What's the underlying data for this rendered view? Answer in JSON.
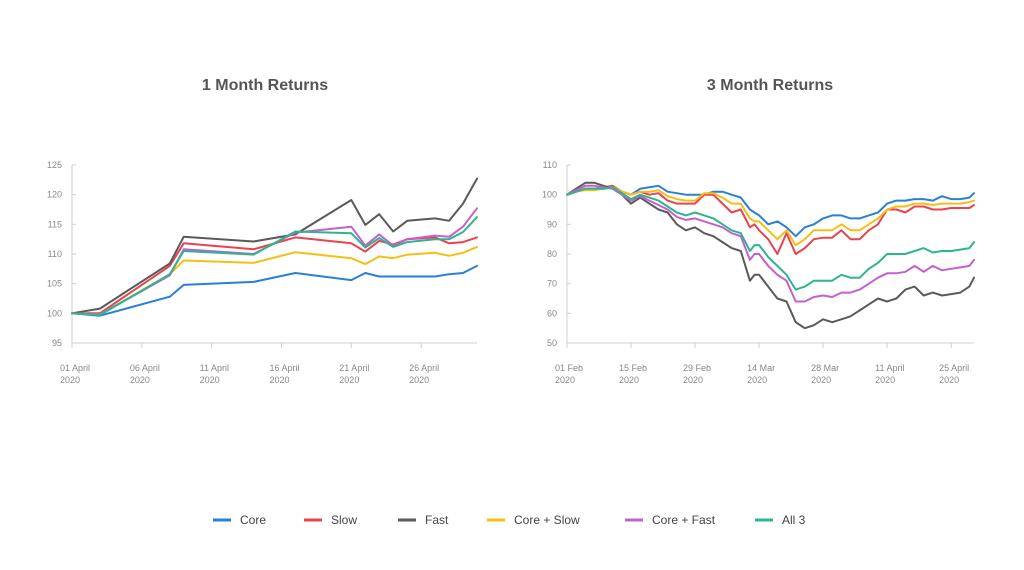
{
  "chart_data": [
    {
      "type": "line",
      "title": "1 Month Returns",
      "ylim": [
        95,
        125
      ],
      "yticks": [
        "95",
        "100",
        "105",
        "110",
        "115",
        "120",
        "125"
      ],
      "x_min": 1,
      "x_max": 30,
      "xticks": [
        {
          "x": 1,
          "lines": [
            "01 April",
            "2020"
          ]
        },
        {
          "x": 6,
          "lines": [
            "06 April",
            "2020"
          ]
        },
        {
          "x": 11,
          "lines": [
            "11 April",
            "2020"
          ]
        },
        {
          "x": 16,
          "lines": [
            "16 April",
            "2020"
          ]
        },
        {
          "x": 21,
          "lines": [
            "21 April",
            "2020"
          ]
        },
        {
          "x": 26,
          "lines": [
            "26 April",
            "2020"
          ]
        }
      ],
      "x": [
        1,
        3,
        8,
        9,
        14,
        17,
        21,
        22,
        23,
        24,
        25,
        27,
        28,
        29,
        30
      ],
      "series": [
        {
          "name": "Core",
          "color": "#2a7fd6",
          "values": [
            100,
            99.6,
            102.8,
            104.8,
            105.3,
            106.8,
            105.6,
            106.8,
            106.2,
            106.2,
            106.2,
            106.2,
            106.6,
            106.8,
            108
          ]
        },
        {
          "name": "Slow",
          "color": "#e8434f",
          "values": [
            100,
            100,
            108,
            111.8,
            110.8,
            112.8,
            111.8,
            110.4,
            112.2,
            111.6,
            112.5,
            112.8,
            111.8,
            112,
            112.8
          ]
        },
        {
          "name": "Fast",
          "color": "#5a5a5a",
          "values": [
            100,
            100.8,
            108.4,
            112.9,
            112.1,
            113.3,
            119.1,
            114.9,
            116.7,
            113.8,
            115.6,
            116,
            115.6,
            118.5,
            122.7
          ]
        },
        {
          "name": "Core + Slow",
          "color": "#f5bf14",
          "values": [
            100,
            99.8,
            106.6,
            108.9,
            108.5,
            110.3,
            109.3,
            108.3,
            109.6,
            109.3,
            109.9,
            110.2,
            109.7,
            110.2,
            111.2
          ]
        },
        {
          "name": "Core + Fast",
          "color": "#c65fce",
          "values": [
            100,
            99.8,
            106.4,
            110.8,
            110,
            113.6,
            114.6,
            111.4,
            113.3,
            111.4,
            112.5,
            113.1,
            112.9,
            114.6,
            117.7
          ]
        },
        {
          "name": "All 3",
          "color": "#2db590",
          "values": [
            100,
            99.7,
            106.6,
            110.5,
            109.9,
            113.8,
            113.5,
            111.1,
            112.7,
            111.2,
            112,
            112.5,
            112.5,
            113.7,
            116.2
          ]
        }
      ]
    },
    {
      "type": "line",
      "title": "3 Month Returns",
      "ylim": [
        50,
        110
      ],
      "yticks": [
        "50",
        "60",
        "70",
        "80",
        "90",
        "100",
        "110"
      ],
      "x_min": 0,
      "x_max": 89,
      "xticks": [
        {
          "x": 0,
          "lines": [
            "01 Feb",
            "2020"
          ]
        },
        {
          "x": 14,
          "lines": [
            "15 Feb",
            "2020"
          ]
        },
        {
          "x": 28,
          "lines": [
            "29 Feb",
            "2020"
          ]
        },
        {
          "x": 42,
          "lines": [
            "14 Mar",
            "2020"
          ]
        },
        {
          "x": 56,
          "lines": [
            "28 Mar",
            "2020"
          ]
        },
        {
          "x": 70,
          "lines": [
            "11 April",
            "2020"
          ]
        },
        {
          "x": 84,
          "lines": [
            "25 April",
            "2020"
          ]
        }
      ],
      "x": [
        0,
        2,
        4,
        6,
        8,
        10,
        12,
        14,
        16,
        18,
        20,
        22,
        24,
        26,
        28,
        30,
        32,
        34,
        36,
        38,
        40,
        41,
        42,
        44,
        46,
        48,
        50,
        52,
        54,
        56,
        58,
        60,
        62,
        64,
        66,
        68,
        70,
        72,
        74,
        76,
        78,
        80,
        82,
        84,
        86,
        88,
        89
      ],
      "series": [
        {
          "name": "Core",
          "color": "#2a7fd6",
          "values": [
            100,
            101,
            102,
            102,
            102,
            102.5,
            101,
            100,
            102,
            102.5,
            103,
            101,
            100.5,
            100,
            100,
            100,
            101,
            101,
            100,
            99,
            95,
            94,
            93,
            90,
            91,
            89,
            86,
            89,
            90,
            92,
            93,
            93,
            92,
            92,
            93,
            94,
            97,
            98,
            98,
            98.5,
            98.5,
            98,
            99.5,
            98.5,
            98.5,
            99,
            100.5
          ]
        },
        {
          "name": "Slow",
          "color": "#e8434f",
          "values": [
            100,
            101,
            102,
            102,
            102.5,
            103,
            101,
            100,
            101,
            100,
            100.5,
            98,
            97,
            97,
            97,
            100,
            100,
            97,
            94,
            95,
            89,
            90,
            88,
            85,
            80,
            87,
            80,
            82,
            85,
            85.5,
            85.5,
            88,
            85,
            85,
            88,
            90,
            95,
            95,
            94,
            96,
            96,
            95,
            95,
            95.5,
            95.5,
            95.5,
            96.5
          ]
        },
        {
          "name": "Fast",
          "color": "#5a5a5a",
          "values": [
            100,
            102,
            104,
            104,
            103,
            102,
            100,
            97,
            99,
            97,
            95,
            94,
            90,
            88,
            89,
            87,
            86,
            84,
            82,
            81,
            71,
            73,
            73,
            69,
            65,
            64,
            57,
            55,
            56,
            58,
            57,
            58,
            59,
            61,
            63,
            65,
            64,
            65,
            68,
            69,
            66,
            67,
            66,
            66.5,
            67,
            69,
            72
          ]
        },
        {
          "name": "Core + Slow",
          "color": "#f5bf14",
          "values": [
            100,
            101,
            101.5,
            101.5,
            102,
            102.5,
            101,
            100,
            101,
            101,
            101.5,
            99.5,
            98.5,
            98,
            98,
            100.5,
            100.5,
            99,
            97,
            97,
            92,
            91,
            91,
            88,
            85,
            88,
            83,
            85,
            88,
            88,
            88,
            90,
            88,
            88,
            90,
            92,
            95,
            96,
            96,
            97,
            97,
            96.5,
            97,
            97,
            97,
            97.5,
            98
          ]
        },
        {
          "name": "Core + Fast",
          "color": "#c65fce",
          "values": [
            100,
            101.5,
            103,
            103,
            102.5,
            102,
            100,
            98,
            99.5,
            98,
            96.5,
            95,
            92.5,
            91.5,
            92,
            91,
            90,
            89,
            87,
            86,
            78,
            80,
            80,
            76,
            73,
            71,
            64,
            64,
            65.5,
            66,
            65.5,
            67,
            67,
            68,
            70,
            72,
            73.5,
            73.5,
            74,
            76,
            74,
            76,
            74.5,
            75,
            75.5,
            76,
            78
          ]
        },
        {
          "name": "All 3",
          "color": "#2db590",
          "values": [
            100,
            101,
            102,
            102,
            102,
            102.5,
            100.5,
            98.5,
            100,
            99,
            98,
            96,
            94,
            93,
            94,
            93,
            92,
            90,
            88,
            87,
            81,
            83,
            83,
            79,
            76,
            73,
            68,
            69,
            71,
            71,
            71,
            73,
            72,
            72,
            75,
            77,
            80,
            80,
            80,
            81,
            82,
            80.5,
            81,
            81,
            81.5,
            82,
            84
          ]
        }
      ]
    }
  ]
}
